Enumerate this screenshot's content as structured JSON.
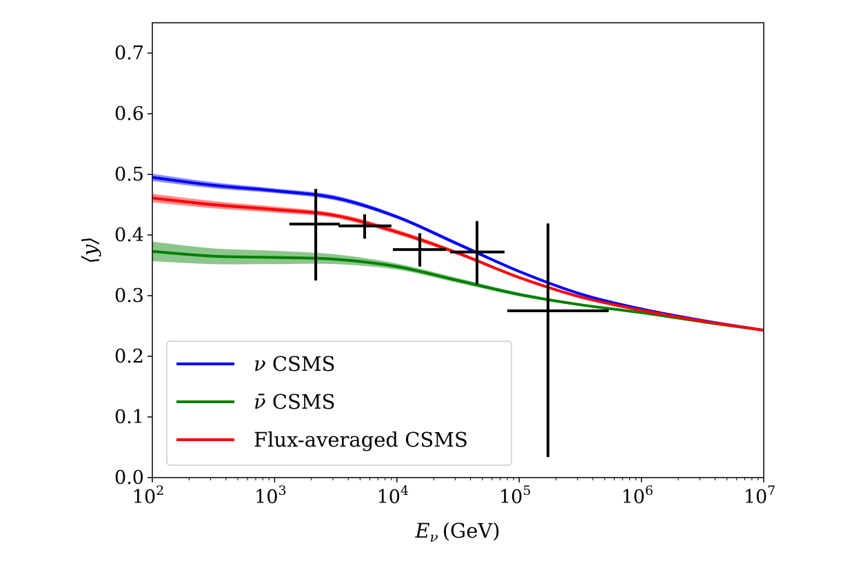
{
  "chart_data": {
    "type": "line",
    "title": "",
    "xlabel": "E_ν (GeV)",
    "xlabel_main": "E",
    "xlabel_sub": "ν",
    "xlabel_unit": "(GeV)",
    "ylabel": "⟨y⟩",
    "xscale": "log",
    "xlim": [
      100,
      10000000
    ],
    "ylim": [
      0.0,
      0.75
    ],
    "xticks": [
      {
        "base": "10",
        "exp": "2"
      },
      {
        "base": "10",
        "exp": "3"
      },
      {
        "base": "10",
        "exp": "4"
      },
      {
        "base": "10",
        "exp": "5"
      },
      {
        "base": "10",
        "exp": "6"
      },
      {
        "base": "10",
        "exp": "7"
      }
    ],
    "yticks": [
      "0.0",
      "0.1",
      "0.2",
      "0.3",
      "0.4",
      "0.5",
      "0.6",
      "0.7"
    ],
    "grid": false,
    "legend_position": "lower-left",
    "x": [
      100,
      316,
      1000,
      3162,
      10000,
      31623,
      100000,
      316228,
      1000000,
      3162278,
      10000000
    ],
    "series": [
      {
        "name": "ν CSMS",
        "color": "#0000ff",
        "values": [
          0.495,
          0.482,
          0.473,
          0.461,
          0.43,
          0.385,
          0.34,
          0.303,
          0.278,
          0.259,
          0.243
        ],
        "band": [
          0.006,
          0.005,
          0.004,
          0.004,
          0.003,
          0.003,
          0.002,
          0.002,
          0.002,
          0.001,
          0.001
        ]
      },
      {
        "name": "ν̄ CSMS",
        "color": "#008000",
        "values": [
          0.373,
          0.365,
          0.363,
          0.36,
          0.348,
          0.325,
          0.302,
          0.285,
          0.272,
          0.257,
          0.243
        ],
        "band": [
          0.016,
          0.013,
          0.011,
          0.008,
          0.005,
          0.004,
          0.003,
          0.002,
          0.002,
          0.001,
          0.001
        ]
      },
      {
        "name": "Flux-averaged CSMS",
        "color": "#ff0000",
        "values": [
          0.461,
          0.45,
          0.442,
          0.432,
          0.405,
          0.37,
          0.33,
          0.298,
          0.276,
          0.258,
          0.243
        ],
        "band": [
          0.007,
          0.006,
          0.005,
          0.004,
          0.004,
          0.003,
          0.002,
          0.002,
          0.002,
          0.001,
          0.001
        ]
      }
    ],
    "legend": [
      {
        "math": "ν",
        "text": "CSMS",
        "color": "#0000ff"
      },
      {
        "math": "ν̄",
        "text": "CSMS",
        "color": "#008000"
      },
      {
        "math": "",
        "text": "Flux-averaged CSMS",
        "color": "#ff0000"
      }
    ],
    "data_points": [
      {
        "x": 2170,
        "x_lo": 1320,
        "x_hi": 3410,
        "y": 0.418,
        "y_lo": 0.325,
        "y_hi": 0.476
      },
      {
        "x": 5450,
        "x_lo": 3330,
        "x_hi": 9030,
        "y": 0.415,
        "y_lo": 0.394,
        "y_hi": 0.434
      },
      {
        "x": 15400,
        "x_lo": 9270,
        "x_hi": 25200,
        "y": 0.376,
        "y_lo": 0.348,
        "y_hi": 0.403
      },
      {
        "x": 45200,
        "x_lo": 27200,
        "x_hi": 75900,
        "y": 0.372,
        "y_lo": 0.319,
        "y_hi": 0.423
      },
      {
        "x": 172000,
        "x_lo": 80000,
        "x_hi": 540000,
        "y": 0.275,
        "y_lo": 0.034,
        "y_hi": 0.419
      }
    ],
    "data_point_color": "#000000"
  }
}
